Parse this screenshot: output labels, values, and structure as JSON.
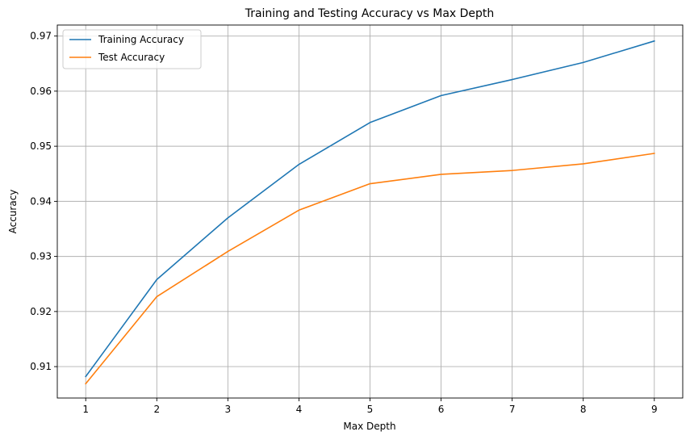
{
  "chart_data": {
    "type": "line",
    "title": "Training and Testing Accuracy vs Max Depth",
    "xlabel": "Max Depth",
    "ylabel": "Accuracy",
    "x": [
      1,
      2,
      3,
      4,
      5,
      6,
      7,
      8,
      9
    ],
    "xticks": [
      "1",
      "2",
      "3",
      "4",
      "5",
      "6",
      "7",
      "8",
      "9"
    ],
    "yticks": [
      "0.91",
      "0.92",
      "0.93",
      "0.94",
      "0.95",
      "0.96",
      "0.97"
    ],
    "xlim": [
      0.6,
      9.4
    ],
    "ylim": [
      0.9043,
      0.972
    ],
    "grid": true,
    "legend_position": "top-left",
    "series": [
      {
        "name": "Training Accuracy",
        "color": "#1f77b4",
        "values": [
          0.9082,
          0.9258,
          0.937,
          0.9467,
          0.9543,
          0.9592,
          0.9621,
          0.9652,
          0.9691
        ]
      },
      {
        "name": "Test Accuracy",
        "color": "#ff7f0e",
        "values": [
          0.9069,
          0.9227,
          0.9309,
          0.9384,
          0.9432,
          0.9449,
          0.9456,
          0.9468,
          0.9487
        ]
      }
    ]
  }
}
